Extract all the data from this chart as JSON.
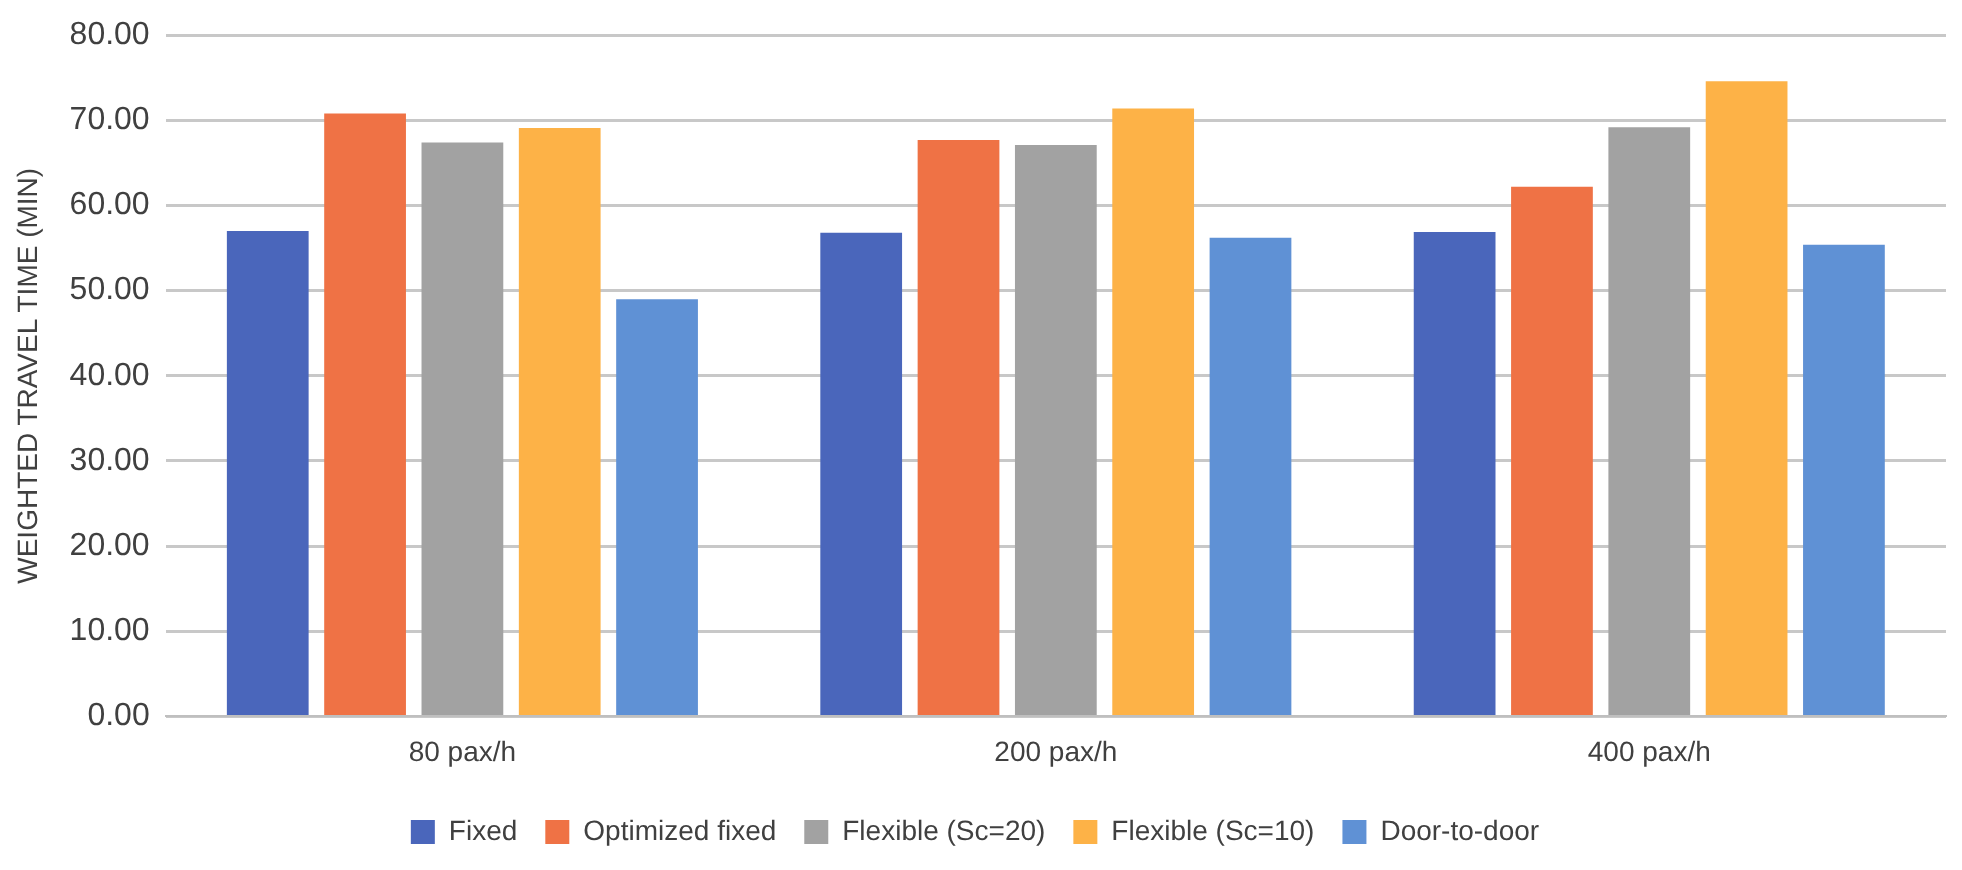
{
  "chart_data": {
    "type": "bar",
    "ylabel": "WEIGHTED TRAVEL TIME (MIN)",
    "categories": [
      "80 pax/h",
      "200 pax/h",
      "400 pax/h"
    ],
    "series": [
      {
        "name": "Fixed",
        "color": "#4a66bb",
        "values": [
          57.0,
          56.8,
          56.9
        ]
      },
      {
        "name": "Optimized fixed",
        "color": "#ef7245",
        "values": [
          70.8,
          67.7,
          62.2
        ]
      },
      {
        "name": "Flexible (Sc=20)",
        "color": "#a2a2a2",
        "values": [
          67.4,
          67.1,
          69.2
        ]
      },
      {
        "name": "Flexible (Sc=10)",
        "color": "#fdb247",
        "values": [
          69.1,
          71.4,
          74.6
        ]
      },
      {
        "name": "Door-to-door",
        "color": "#5f91d5",
        "values": [
          49.0,
          56.2,
          55.4
        ]
      }
    ],
    "ylim": [
      0,
      80
    ],
    "yticks": [
      {
        "value": 0,
        "label": "0.00"
      },
      {
        "value": 10,
        "label": "10.00"
      },
      {
        "value": 20,
        "label": "20.00"
      },
      {
        "value": 30,
        "label": "30.00"
      },
      {
        "value": 40,
        "label": "40.00"
      },
      {
        "value": 50,
        "label": "50.00"
      },
      {
        "value": 60,
        "label": "60.00"
      },
      {
        "value": 70,
        "label": "70.00"
      },
      {
        "value": 80,
        "label": "80.00"
      }
    ],
    "grid": "y",
    "legend": "bottom"
  }
}
